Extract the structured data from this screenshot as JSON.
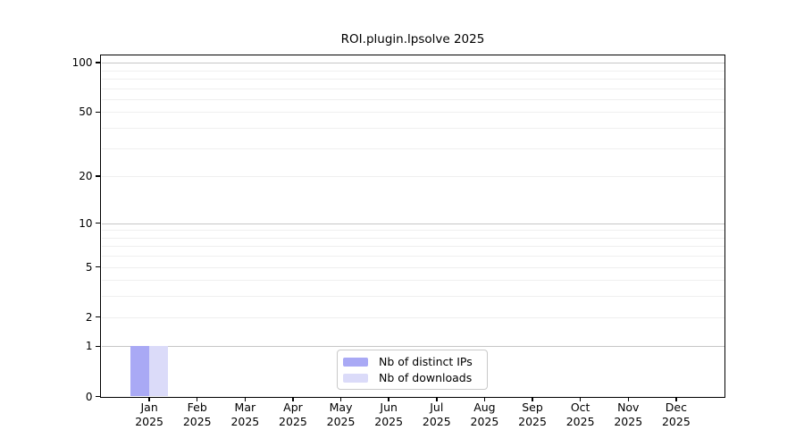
{
  "chart_data": {
    "type": "bar",
    "title": "ROI.plugin.lpsolve 2025",
    "categories": [
      "Jan",
      "Feb",
      "Mar",
      "Apr",
      "May",
      "Jun",
      "Jul",
      "Aug",
      "Sep",
      "Oct",
      "Nov",
      "Dec"
    ],
    "x_year_label": "2025",
    "series": [
      {
        "name": "Nb of distinct IPs",
        "color": "#a9a9f5",
        "values": [
          1,
          0,
          0,
          0,
          0,
          0,
          0,
          0,
          0,
          0,
          0,
          0
        ]
      },
      {
        "name": "Nb of downloads",
        "color": "#dbdbf9",
        "values": [
          1,
          0,
          0,
          0,
          0,
          0,
          0,
          0,
          0,
          0,
          0,
          0
        ]
      }
    ],
    "y_axis": {
      "scale": "log1p",
      "tick_labels": [
        0,
        1,
        2,
        5,
        10,
        20,
        50,
        100
      ],
      "major_gridlines": [
        1,
        10,
        100
      ],
      "minor_gridlines": [
        2,
        3,
        4,
        5,
        6,
        7,
        8,
        9,
        20,
        30,
        40,
        50,
        60,
        70,
        80,
        90
      ],
      "top_value": 110
    },
    "legend": {
      "position": "lower center inside",
      "entries": [
        "Nb of distinct IPs",
        "Nb of downloads"
      ]
    },
    "colors": {
      "distinct_ips": "#a9a9f5",
      "downloads": "#dbdbf9",
      "major_grid": "#c6c6c6",
      "minor_grid": "#efefef",
      "axis": "#000000",
      "background": "#ffffff"
    }
  }
}
